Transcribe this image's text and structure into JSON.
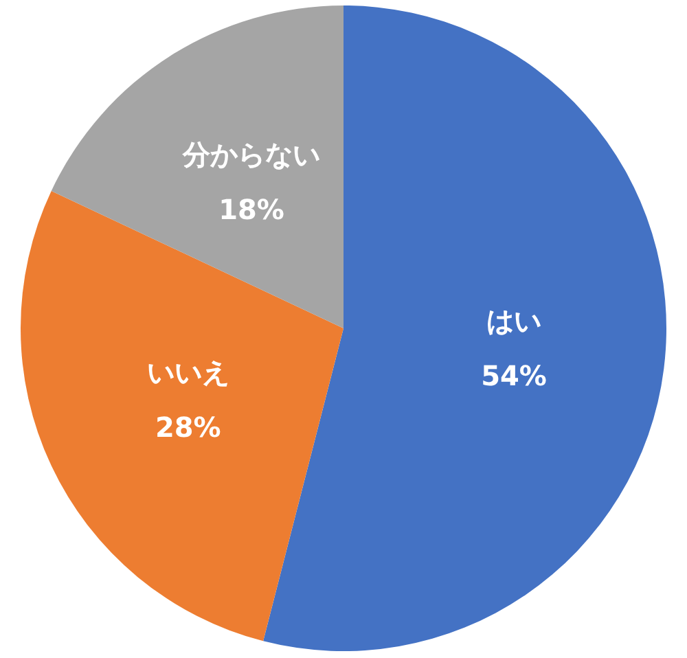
{
  "chart_data": {
    "type": "pie",
    "categories": [
      "はい",
      "いいえ",
      "分からない"
    ],
    "values": [
      54,
      28,
      18
    ],
    "colors": [
      "#4472c4",
      "#ed7d31",
      "#a5a5a5"
    ],
    "value_labels": [
      "54%",
      "28%",
      "18%"
    ]
  }
}
